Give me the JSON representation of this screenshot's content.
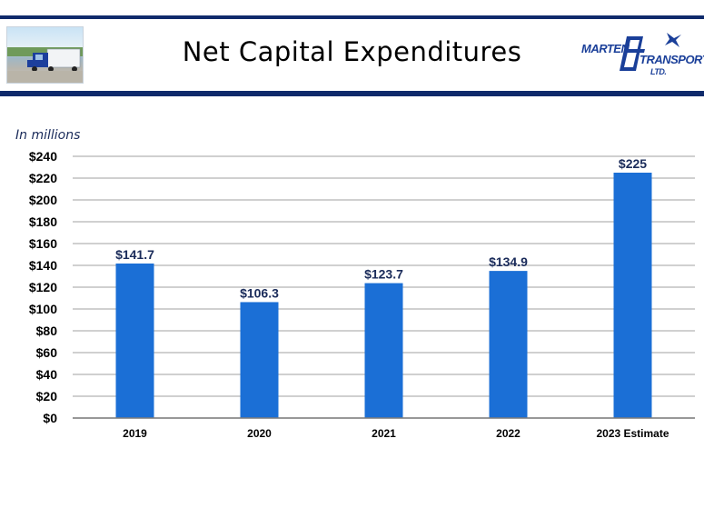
{
  "header": {
    "title": "Net Capital Expenditures",
    "logo": {
      "word1": "MARTEN",
      "word2": "TRANSPORT",
      "word3": "LTD.",
      "icon": "mt-monogram-plane-logo"
    },
    "photo": {
      "icon": "semi-truck-photo"
    }
  },
  "colors": {
    "bar": "#1b6fd6",
    "rule": "#0f2a6b",
    "grid": "#b5b5b5"
  },
  "chart_data": {
    "type": "bar",
    "title": "Net Capital Expenditures",
    "unit_note": "In millions",
    "categories": [
      "2019",
      "2020",
      "2021",
      "2022",
      "2023 Estimate"
    ],
    "values": [
      141.7,
      106.3,
      123.7,
      134.9,
      225
    ],
    "data_labels": [
      "$141.7",
      "$106.3",
      "$123.7",
      "$134.9",
      "$225"
    ],
    "y_ticks": [
      0,
      20,
      40,
      60,
      80,
      100,
      120,
      140,
      160,
      180,
      200,
      220,
      240
    ],
    "y_tick_labels": [
      "$0",
      "$20",
      "$40",
      "$60",
      "$80",
      "$100",
      "$120",
      "$140",
      "$160",
      "$180",
      "$200",
      "$220",
      "$240"
    ],
    "ylim": [
      0,
      240
    ],
    "grid": true,
    "legend": "none"
  }
}
